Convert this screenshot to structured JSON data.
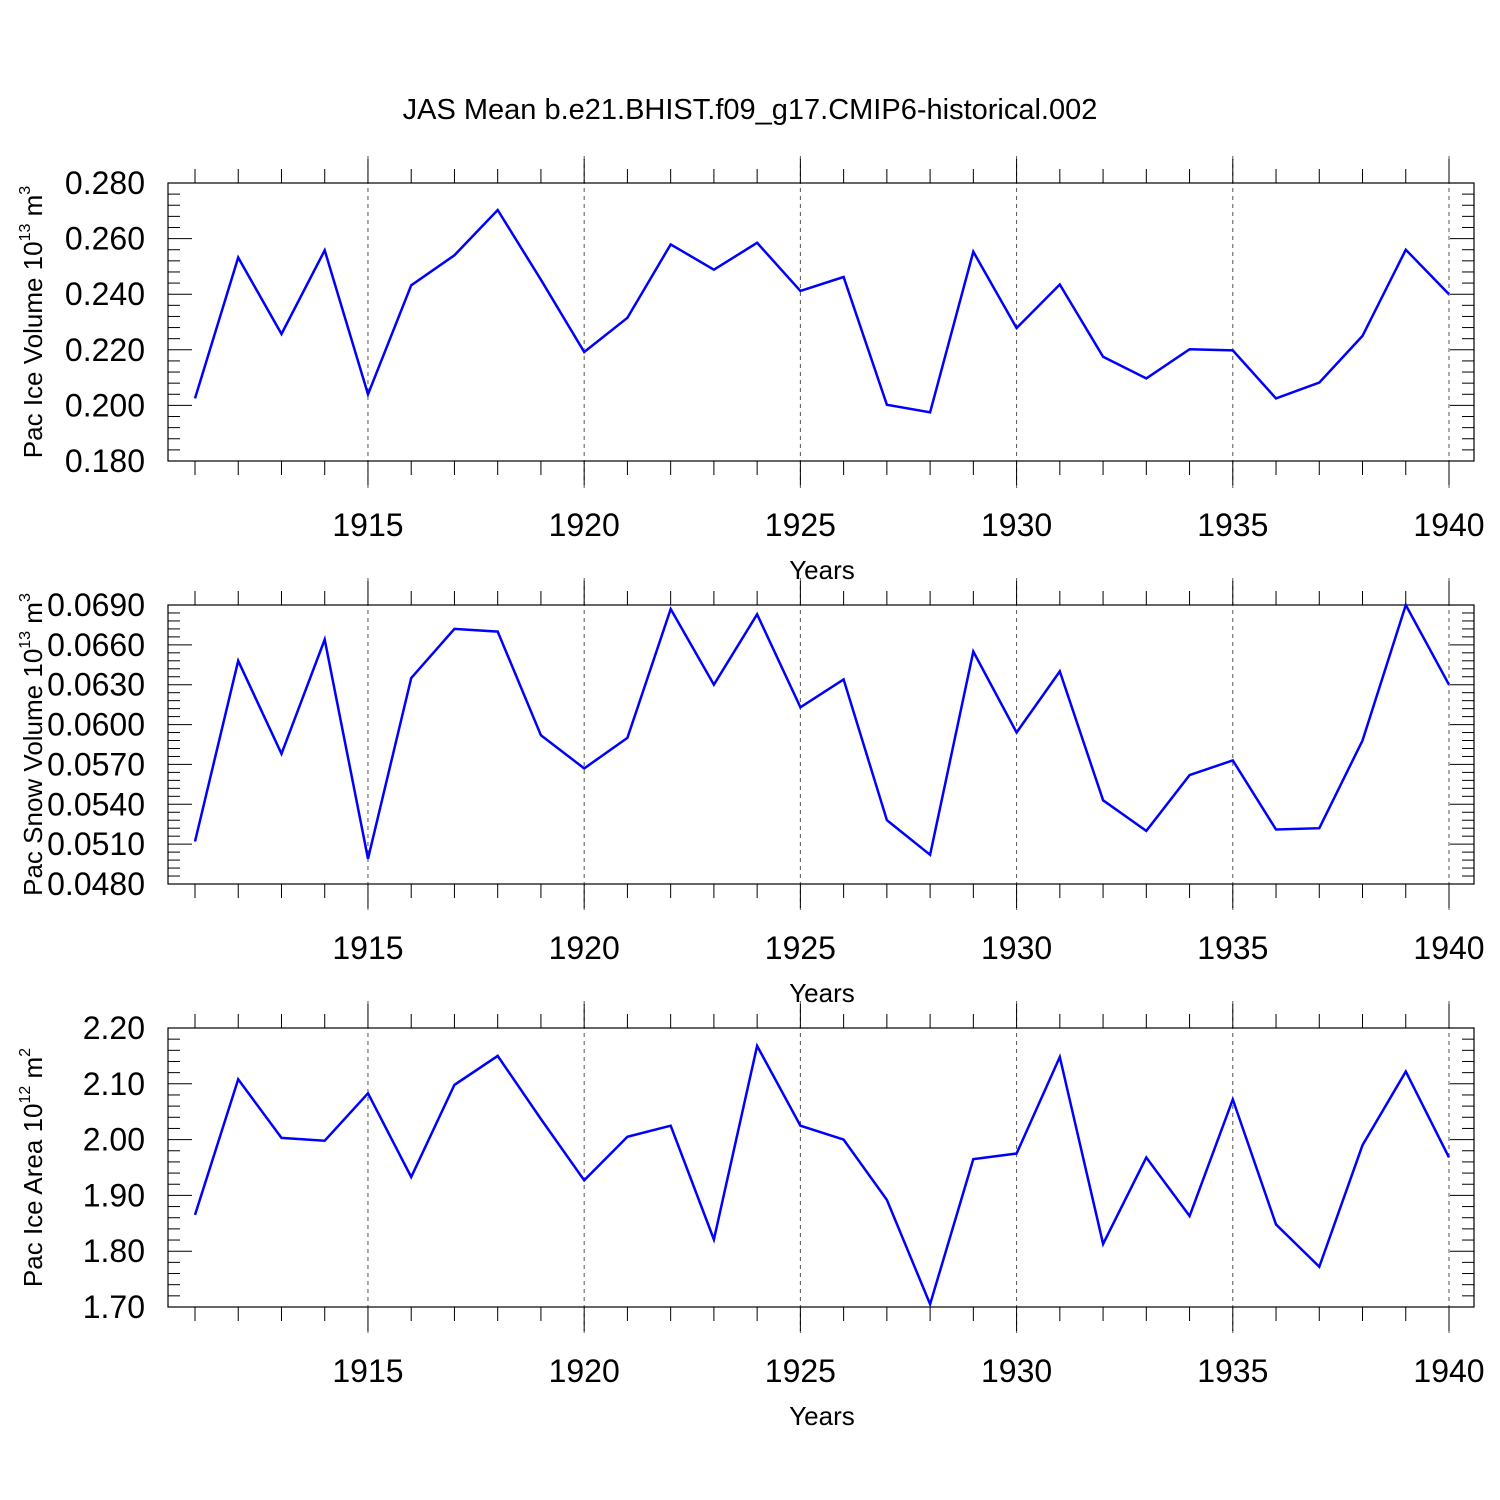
{
  "figure": {
    "title": "JAS Mean b.e21.BHIST.f09_g17.CMIP6-historical.002",
    "line_color": "#0000ff"
  },
  "chart_data": [
    {
      "type": "line",
      "title": "",
      "xlabel": "Years",
      "ylabel": {
        "base": "Pac Ice Volume 10",
        "exp": "13",
        "unit": " m",
        "unit_exp": "3"
      },
      "xlim": [
        1911,
        1940
      ],
      "ylim": [
        0.18,
        0.28
      ],
      "yticks": [
        "0.180",
        "0.200",
        "0.220",
        "0.240",
        "0.260",
        "0.280"
      ],
      "xticks": [
        "1915",
        "1920",
        "1925",
        "1930",
        "1935",
        "1940"
      ],
      "grid": "x-dashed",
      "series": [
        {
          "name": "Pac Ice Volume",
          "x": [
            1911,
            1912,
            1913,
            1914,
            1915,
            1916,
            1917,
            1918,
            1919,
            1920,
            1921,
            1922,
            1923,
            1924,
            1925,
            1926,
            1927,
            1928,
            1929,
            1930,
            1931,
            1932,
            1933,
            1934,
            1935,
            1936,
            1937,
            1938,
            1939,
            1940
          ],
          "values": [
            0.2025,
            0.2532,
            0.2257,
            0.2558,
            0.204,
            0.2432,
            0.254,
            0.2703,
            0.2452,
            0.2192,
            0.2315,
            0.2579,
            0.2488,
            0.2585,
            0.2412,
            0.2462,
            0.2002,
            0.1975,
            0.2553,
            0.2278,
            0.2435,
            0.2175,
            0.2097,
            0.2202,
            0.2198,
            0.2025,
            0.2082,
            0.225,
            0.256,
            0.24
          ]
        }
      ]
    },
    {
      "type": "line",
      "title": "",
      "xlabel": "Years",
      "ylabel": {
        "base": "Pac Snow Volume 10",
        "exp": "13",
        "unit": " m",
        "unit_exp": "3"
      },
      "xlim": [
        1911,
        1940
      ],
      "ylim": [
        0.048,
        0.069
      ],
      "yticks": [
        "0.0480",
        "0.0510",
        "0.0540",
        "0.0570",
        "0.0600",
        "0.0630",
        "0.0660",
        "0.0690"
      ],
      "xticks": [
        "1915",
        "1920",
        "1925",
        "1930",
        "1935",
        "1940"
      ],
      "grid": "x-dashed",
      "series": [
        {
          "name": "Pac Snow Volume",
          "x": [
            1911,
            1912,
            1913,
            1914,
            1915,
            1916,
            1917,
            1918,
            1919,
            1920,
            1921,
            1922,
            1923,
            1924,
            1925,
            1926,
            1927,
            1928,
            1929,
            1930,
            1931,
            1932,
            1933,
            1934,
            1935,
            1936,
            1937,
            1938,
            1939,
            1940
          ],
          "values": [
            0.0512,
            0.0648,
            0.0578,
            0.0664,
            0.0499,
            0.0635,
            0.0672,
            0.067,
            0.0592,
            0.0567,
            0.059,
            0.0687,
            0.063,
            0.0683,
            0.0613,
            0.0634,
            0.0528,
            0.0502,
            0.0655,
            0.0594,
            0.064,
            0.0543,
            0.052,
            0.0562,
            0.0573,
            0.0521,
            0.0522,
            0.0588,
            0.069,
            0.063
          ]
        }
      ]
    },
    {
      "type": "line",
      "title": "",
      "xlabel": "Years",
      "ylabel": {
        "base": "Pac Ice Area 10",
        "exp": "12",
        "unit": " m",
        "unit_exp": "2"
      },
      "xlim": [
        1911,
        1940
      ],
      "ylim": [
        1.7,
        2.2
      ],
      "yticks": [
        "1.70",
        "1.80",
        "1.90",
        "2.00",
        "2.10",
        "2.20"
      ],
      "xticks": [
        "1915",
        "1920",
        "1925",
        "1930",
        "1935",
        "1940"
      ],
      "grid": "x-dashed",
      "series": [
        {
          "name": "Pac Ice Area",
          "x": [
            1911,
            1912,
            1913,
            1914,
            1915,
            1916,
            1917,
            1918,
            1919,
            1920,
            1921,
            1922,
            1923,
            1924,
            1925,
            1926,
            1927,
            1928,
            1929,
            1930,
            1931,
            1932,
            1933,
            1934,
            1935,
            1936,
            1937,
            1938,
            1939,
            1940
          ],
          "values": [
            1.865,
            2.108,
            2.003,
            1.998,
            2.083,
            1.933,
            2.098,
            2.15,
            2.037,
            1.927,
            2.005,
            2.025,
            1.821,
            2.168,
            2.025,
            2.0,
            1.892,
            1.705,
            1.965,
            1.975,
            2.148,
            1.813,
            1.968,
            1.863,
            2.072,
            1.848,
            1.772,
            1.99,
            2.122,
            1.968
          ]
        }
      ]
    }
  ]
}
